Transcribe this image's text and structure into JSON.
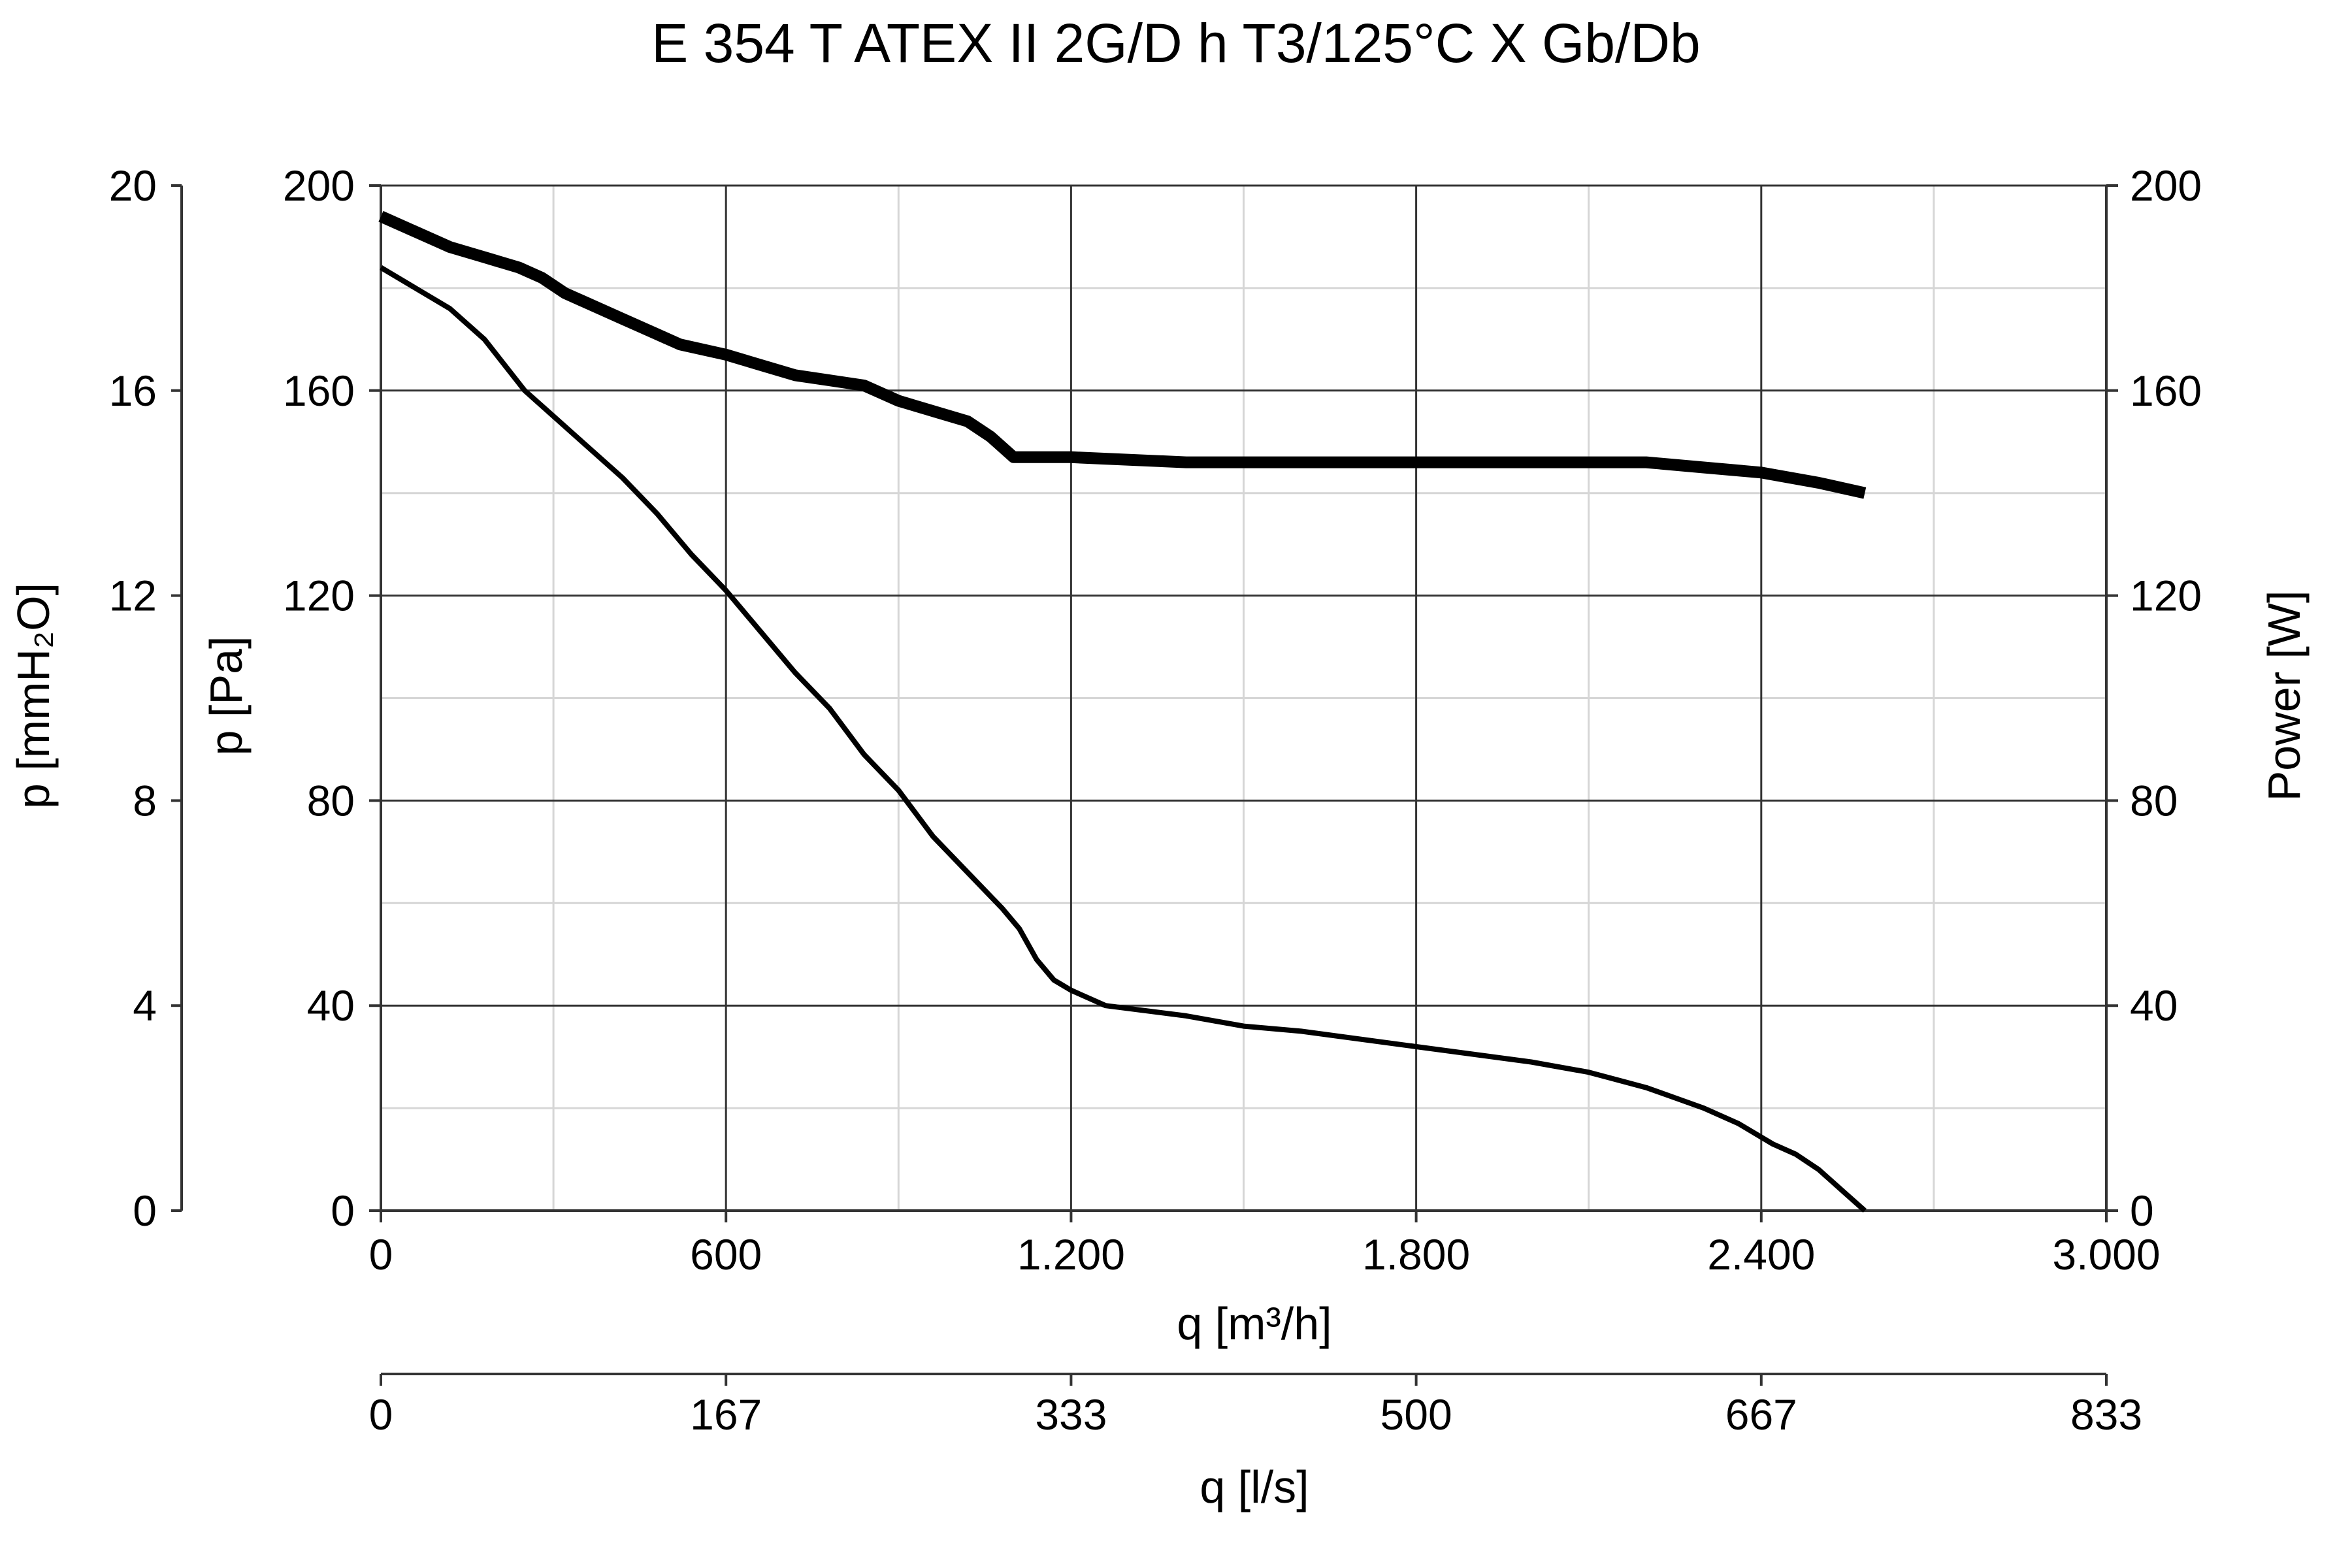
{
  "chart_data": {
    "type": "line",
    "title": "E 354 T ATEX II 2G/D h T3/125°C X Gb/Db",
    "xlabel": "q [m³/h]",
    "xlim": [
      0,
      3000
    ],
    "x_ticks": [
      "0",
      "600",
      "1.200",
      "1.800",
      "2.400",
      "3.000"
    ],
    "x2label": "q [l/s]",
    "x2_ticks": [
      "0",
      "167",
      "333",
      "500",
      "667",
      "833"
    ],
    "ylabel": "p [Pa]",
    "ylim": [
      0,
      200
    ],
    "y_ticks": [
      "0",
      "40",
      "80",
      "120",
      "160",
      "200"
    ],
    "y2label": "p [mmH₂O]",
    "y2lim": [
      0,
      20
    ],
    "y2_ticks": [
      "0",
      "4",
      "8",
      "12",
      "16",
      "20"
    ],
    "y3label": "Power [W]",
    "y3lim": [
      0,
      200
    ],
    "y3_ticks": [
      "0",
      "40",
      "80",
      "120",
      "160",
      "200"
    ],
    "grid": true,
    "legend": "none",
    "series": [
      {
        "axis": "p",
        "line": "thin",
        "color": "#000000",
        "points": [
          [
            0,
            184
          ],
          [
            60,
            180
          ],
          [
            120,
            176
          ],
          [
            180,
            170
          ],
          [
            250,
            160
          ],
          [
            300,
            155
          ],
          [
            350,
            150
          ],
          [
            420,
            143
          ],
          [
            480,
            136
          ],
          [
            540,
            128
          ],
          [
            600,
            121
          ],
          [
            660,
            113
          ],
          [
            720,
            105
          ],
          [
            780,
            98
          ],
          [
            840,
            89
          ],
          [
            900,
            82
          ],
          [
            960,
            73
          ],
          [
            1020,
            66
          ],
          [
            1080,
            59
          ],
          [
            1110,
            55
          ],
          [
            1140,
            49
          ],
          [
            1170,
            45
          ],
          [
            1200,
            43
          ],
          [
            1260,
            40
          ],
          [
            1400,
            38
          ],
          [
            1500,
            36
          ],
          [
            1600,
            35
          ],
          [
            1800,
            32
          ],
          [
            2000,
            29
          ],
          [
            2100,
            27
          ],
          [
            2200,
            24
          ],
          [
            2250,
            22
          ],
          [
            2300,
            20
          ],
          [
            2360,
            17
          ],
          [
            2420,
            13
          ],
          [
            2460,
            11
          ],
          [
            2500,
            8
          ],
          [
            2550,
            3
          ],
          [
            2580,
            0
          ]
        ]
      },
      {
        "axis": "power",
        "line": "thick",
        "color": "#000000",
        "points": [
          [
            0,
            194
          ],
          [
            60,
            191
          ],
          [
            120,
            188
          ],
          [
            180,
            186
          ],
          [
            240,
            184
          ],
          [
            280,
            182
          ],
          [
            320,
            179
          ],
          [
            360,
            177
          ],
          [
            420,
            174
          ],
          [
            480,
            171
          ],
          [
            520,
            169
          ],
          [
            600,
            167
          ],
          [
            660,
            165
          ],
          [
            720,
            163
          ],
          [
            780,
            162
          ],
          [
            840,
            161
          ],
          [
            900,
            158
          ],
          [
            960,
            156
          ],
          [
            1020,
            154
          ],
          [
            1060,
            151
          ],
          [
            1100,
            147
          ],
          [
            1160,
            147
          ],
          [
            1200,
            147
          ],
          [
            1400,
            146
          ],
          [
            1600,
            146
          ],
          [
            1800,
            146
          ],
          [
            2000,
            146
          ],
          [
            2200,
            146
          ],
          [
            2300,
            145
          ],
          [
            2400,
            144
          ],
          [
            2500,
            142
          ],
          [
            2580,
            140
          ]
        ]
      }
    ]
  }
}
